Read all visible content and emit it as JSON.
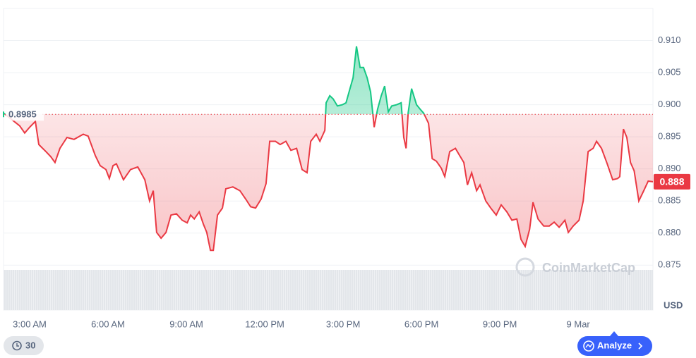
{
  "chart_data": {
    "type": "line",
    "baseline": 0.8985,
    "last_price": 0.888,
    "unit": "USD",
    "watermark": "CoinMarketCap",
    "up_color": "#16c784",
    "down_color": "#ea3943",
    "x": [
      2.0,
      2.62,
      2.81,
      3.0,
      3.22,
      3.35,
      3.62,
      3.81,
      3.97,
      4.16,
      4.43,
      4.7,
      5.05,
      5.24,
      5.51,
      5.7,
      5.92,
      6.05,
      6.19,
      6.32,
      6.59,
      6.86,
      7.14,
      7.41,
      7.59,
      7.73,
      7.86,
      8.03,
      8.22,
      8.41,
      8.62,
      8.84,
      9.03,
      9.16,
      9.3,
      9.49,
      9.65,
      9.78,
      9.92,
      10.03,
      10.19,
      10.38,
      10.51,
      10.78,
      11.05,
      11.27,
      11.46,
      11.65,
      11.86,
      12.05,
      12.19,
      12.41,
      12.59,
      12.81,
      13.0,
      13.22,
      13.43,
      13.62,
      13.76,
      13.97,
      14.11,
      14.3,
      14.35,
      14.49,
      14.62,
      14.78,
      14.97,
      15.11,
      15.24,
      15.38,
      15.51,
      15.65,
      15.78,
      15.92,
      16.05,
      16.19,
      16.32,
      16.46,
      16.59,
      16.73,
      16.86,
      17.05,
      17.22,
      17.32,
      17.41,
      17.49,
      17.62,
      17.81,
      17.95,
      18.08,
      18.27,
      18.41,
      18.57,
      18.76,
      18.89,
      19.08,
      19.3,
      19.43,
      19.62,
      19.76,
      19.92,
      20.11,
      20.24,
      20.46,
      20.65,
      20.86,
      21.05,
      21.27,
      21.46,
      21.65,
      21.81,
      21.97,
      22.14,
      22.27,
      22.46,
      22.68,
      22.89,
      23.08,
      23.27,
      23.49,
      23.62,
      23.81,
      24.03,
      24.19,
      24.38,
      24.57,
      24.7,
      24.89,
      25.11,
      25.32,
      25.51,
      25.59,
      25.73,
      25.86,
      26.0,
      26.14,
      26.32,
      26.51,
      26.68,
      26.86
    ],
    "values": [
      0.8987,
      0.8967,
      0.8956,
      0.8965,
      0.8974,
      0.8938,
      0.8927,
      0.8919,
      0.891,
      0.8932,
      0.8949,
      0.8946,
      0.8954,
      0.8951,
      0.8921,
      0.8905,
      0.8899,
      0.8885,
      0.8905,
      0.8908,
      0.8883,
      0.8899,
      0.8903,
      0.8883,
      0.885,
      0.8866,
      0.8801,
      0.8792,
      0.8801,
      0.8828,
      0.883,
      0.882,
      0.8816,
      0.8828,
      0.8822,
      0.8833,
      0.8814,
      0.8801,
      0.8773,
      0.8773,
      0.8828,
      0.8839,
      0.8869,
      0.8872,
      0.8866,
      0.8853,
      0.8841,
      0.8839,
      0.8853,
      0.8877,
      0.8943,
      0.8943,
      0.8938,
      0.8943,
      0.8929,
      0.8932,
      0.8899,
      0.8894,
      0.8943,
      0.8954,
      0.8943,
      0.896,
      0.9003,
      0.9014,
      0.9009,
      0.8998,
      0.9,
      0.9003,
      0.9022,
      0.9042,
      0.9091,
      0.9058,
      0.9058,
      0.9042,
      0.902,
      0.8965,
      0.8993,
      0.9014,
      0.9029,
      0.8989,
      0.8998,
      0.9,
      0.9003,
      0.8949,
      0.8932,
      0.8987,
      0.9025,
      0.9,
      0.8993,
      0.8987,
      0.8971,
      0.8916,
      0.8912,
      0.8901,
      0.8888,
      0.8927,
      0.8932,
      0.8923,
      0.891,
      0.8875,
      0.8894,
      0.8866,
      0.8875,
      0.885,
      0.8839,
      0.8828,
      0.8844,
      0.8833,
      0.882,
      0.8822,
      0.879,
      0.8779,
      0.8806,
      0.8848,
      0.8822,
      0.8811,
      0.8811,
      0.8817,
      0.8809,
      0.882,
      0.8801,
      0.8811,
      0.882,
      0.885,
      0.8927,
      0.8932,
      0.8943,
      0.8932,
      0.8908,
      0.8883,
      0.8885,
      0.8888,
      0.8962,
      0.8949,
      0.891,
      0.8897,
      0.885,
      0.8866,
      0.8881,
      0.888
    ],
    "xlim": [
      2,
      26.86
    ],
    "xticks": [
      {
        "value": 3,
        "label": "3:00 AM"
      },
      {
        "value": 6,
        "label": "6:00 AM"
      },
      {
        "value": 9,
        "label": "9:00 AM"
      },
      {
        "value": 12,
        "label": "12:00 PM"
      },
      {
        "value": 15,
        "label": "3:00 PM"
      },
      {
        "value": 18,
        "label": "6:00 PM"
      },
      {
        "value": 21,
        "label": "9:00 PM"
      },
      {
        "value": 24,
        "label": "9 Mar"
      }
    ],
    "ylim": [
      0.868,
      0.915
    ],
    "yticks": [
      0.875,
      {
        "value": 0.88,
        "label": "0.880"
      },
      0.885,
      {
        "value": 0.89,
        "label": "0.890"
      },
      0.895,
      {
        "value": 0.9,
        "label": "0.900"
      },
      0.905,
      {
        "value": 0.91,
        "label": "0.910"
      }
    ],
    "grid": true
  },
  "controls": {
    "range": "30",
    "analyze": "Analyze"
  }
}
